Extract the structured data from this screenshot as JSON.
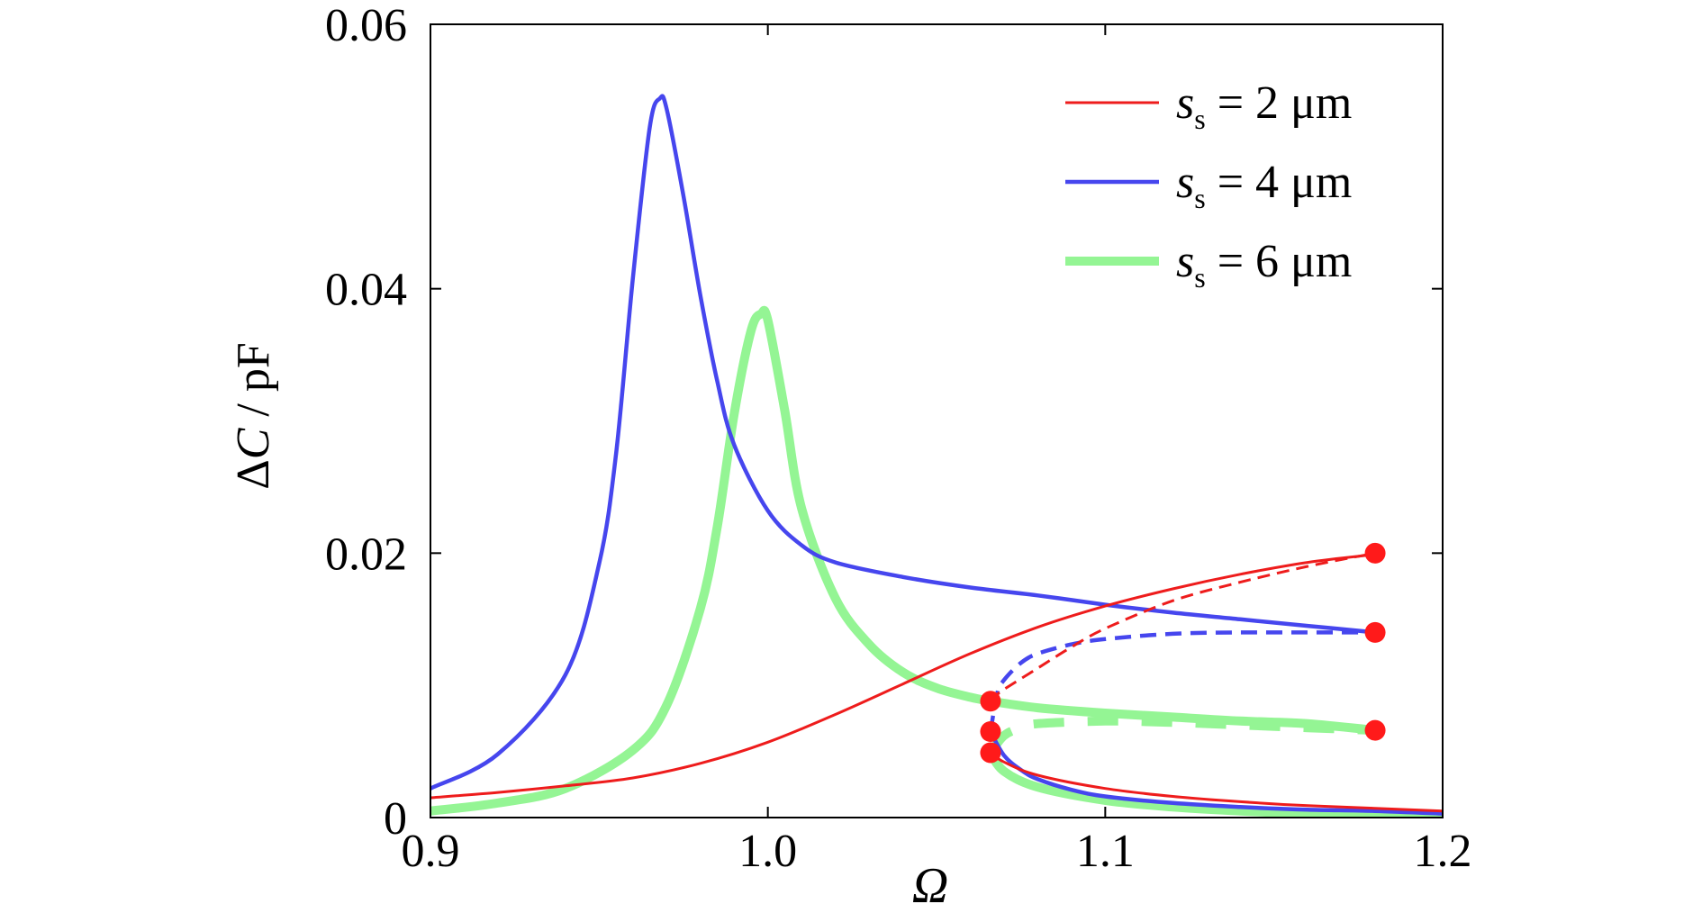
{
  "chart_data": {
    "type": "line",
    "title": "",
    "xlabel": "Ω",
    "ylabel_prefix": "Δ",
    "ylabel_var": "C",
    "ylabel_unit": " / pF",
    "xlim": [
      0.9,
      1.2
    ],
    "ylim": [
      0,
      0.06
    ],
    "x_ticks": [
      0.9,
      1.0,
      1.1,
      1.2
    ],
    "x_tick_labels": [
      "0.9",
      "1.0",
      "1.1",
      "1.2"
    ],
    "y_ticks": [
      0,
      0.02,
      0.04,
      0.06
    ],
    "y_tick_labels": [
      "0",
      "0.02",
      "0.04",
      "0.06"
    ],
    "grid": false,
    "legend_position": "top-right",
    "colors": {
      "red": "#ee1c1c",
      "blue": "#4646ee",
      "green": "#94f594",
      "marker": "#ff1a1a"
    },
    "series": [
      {
        "name": "s_s = 2 μm",
        "legend": {
          "var": "s",
          "sub": "s",
          "rest": " = 2 μm"
        },
        "color": "#ee1c1c",
        "style": "solid",
        "weight": "thin",
        "x": [
          0.9,
          0.92,
          0.94,
          0.96,
          0.98,
          1.0,
          1.02,
          1.04,
          1.06,
          1.08,
          1.1,
          1.12,
          1.14,
          1.16,
          1.18
        ],
        "y": [
          0.0015,
          0.0019,
          0.0024,
          0.003,
          0.0041,
          0.0057,
          0.0078,
          0.0101,
          0.0124,
          0.0144,
          0.016,
          0.0173,
          0.0184,
          0.0193,
          0.0199
        ]
      },
      {
        "name": "s_s = 2 μm (unstable branch)",
        "color": "#ee1c1c",
        "style": "dashed",
        "weight": "thin",
        "x": [
          1.066,
          1.068,
          1.07,
          1.08,
          1.09,
          1.1,
          1.12,
          1.14,
          1.16,
          1.18
        ],
        "y": [
          0.0088,
          0.0093,
          0.0097,
          0.0113,
          0.0129,
          0.0143,
          0.0164,
          0.0178,
          0.019,
          0.02
        ]
      },
      {
        "name": "s_s = 2 μm (lower branch)",
        "color": "#ee1c1c",
        "style": "solid",
        "weight": "thin",
        "x": [
          1.066,
          1.07,
          1.08,
          1.1,
          1.12,
          1.14,
          1.16,
          1.18,
          1.2
        ],
        "y": [
          0.0049,
          0.0042,
          0.0032,
          0.0022,
          0.0016,
          0.0012,
          0.0009,
          0.0007,
          0.0005
        ]
      },
      {
        "name": "s_s = 4 μm",
        "legend": {
          "var": "s",
          "sub": "s",
          "rest": " = 4 μm"
        },
        "color": "#4646ee",
        "style": "solid",
        "weight": "medium",
        "x": [
          0.9,
          0.92,
          0.94,
          0.95,
          0.955,
          0.96,
          0.965,
          0.968,
          0.97,
          0.975,
          0.98,
          0.985,
          0.99,
          1.0,
          1.01,
          1.02,
          1.04,
          1.06,
          1.08,
          1.1,
          1.12,
          1.14,
          1.16,
          1.18
        ],
        "y": [
          0.0022,
          0.0048,
          0.0108,
          0.0192,
          0.0275,
          0.0408,
          0.0522,
          0.0544,
          0.0536,
          0.047,
          0.0395,
          0.033,
          0.0282,
          0.0232,
          0.0206,
          0.0193,
          0.0182,
          0.0174,
          0.0168,
          0.0161,
          0.0155,
          0.015,
          0.0145,
          0.014
        ]
      },
      {
        "name": "s_s = 4 μm (unstable branch)",
        "color": "#4646ee",
        "style": "dashed",
        "weight": "medium",
        "x": [
          1.066,
          1.068,
          1.07,
          1.075,
          1.08,
          1.09,
          1.1,
          1.12,
          1.14,
          1.16,
          1.18
        ],
        "y": [
          0.0065,
          0.0094,
          0.0104,
          0.0117,
          0.0124,
          0.0131,
          0.0135,
          0.0139,
          0.014,
          0.014,
          0.014
        ]
      },
      {
        "name": "s_s = 4 μm (lower branch)",
        "color": "#4646ee",
        "style": "solid",
        "weight": "medium",
        "x": [
          1.066,
          1.07,
          1.075,
          1.08,
          1.09,
          1.1,
          1.12,
          1.14,
          1.16,
          1.18,
          1.2
        ],
        "y": [
          0.0065,
          0.0047,
          0.0036,
          0.0029,
          0.0021,
          0.0016,
          0.0011,
          0.0008,
          0.0006,
          0.0005,
          0.0003
        ]
      },
      {
        "name": "s_s = 6 μm",
        "legend": {
          "var": "s",
          "sub": "s",
          "rest": " = 6 μm"
        },
        "color": "#94f594",
        "style": "solid",
        "weight": "thick",
        "x": [
          0.9,
          0.92,
          0.94,
          0.96,
          0.97,
          0.98,
          0.985,
          0.99,
          0.995,
          0.998,
          1.0,
          1.005,
          1.01,
          1.02,
          1.03,
          1.04,
          1.05,
          1.06,
          1.066
        ],
        "y": [
          0.0005,
          0.0011,
          0.0022,
          0.0051,
          0.0085,
          0.0158,
          0.022,
          0.0305,
          0.0368,
          0.0381,
          0.0376,
          0.0308,
          0.0234,
          0.0166,
          0.0131,
          0.011,
          0.0098,
          0.0091,
          0.0088
        ]
      },
      {
        "name": "s_s = 6 μm (unstable branch)",
        "color": "#94f594",
        "style": "dashed",
        "weight": "thick",
        "x": [
          1.066,
          1.07,
          1.075,
          1.08,
          1.1,
          1.12,
          1.14,
          1.16,
          1.18
        ],
        "y": [
          0.0049,
          0.0062,
          0.0068,
          0.0071,
          0.0073,
          0.0072,
          0.007,
          0.0068,
          0.0066
        ]
      },
      {
        "name": "s_s = 6 μm (upper stable branch)",
        "color": "#94f594",
        "style": "solid",
        "weight": "thick",
        "x": [
          1.066,
          1.08,
          1.1,
          1.12,
          1.14,
          1.16,
          1.18
        ],
        "y": [
          0.0088,
          0.0083,
          0.0079,
          0.0076,
          0.0073,
          0.0071,
          0.0066
        ]
      },
      {
        "name": "s_s = 6 μm (lower branch)",
        "color": "#94f594",
        "style": "solid",
        "weight": "thick",
        "x": [
          1.066,
          1.07,
          1.08,
          1.1,
          1.12,
          1.14,
          1.16,
          1.18,
          1.2
        ],
        "y": [
          0.0049,
          0.0035,
          0.0023,
          0.0013,
          0.0008,
          0.0005,
          0.0003,
          0.0002,
          0.0001
        ]
      }
    ],
    "markers": {
      "color": "#ff1a1a",
      "points": [
        {
          "x": 1.066,
          "y": 0.0088
        },
        {
          "x": 1.066,
          "y": 0.0065
        },
        {
          "x": 1.066,
          "y": 0.0049
        },
        {
          "x": 1.18,
          "y": 0.02
        },
        {
          "x": 1.18,
          "y": 0.014
        },
        {
          "x": 1.18,
          "y": 0.0066
        }
      ]
    }
  }
}
